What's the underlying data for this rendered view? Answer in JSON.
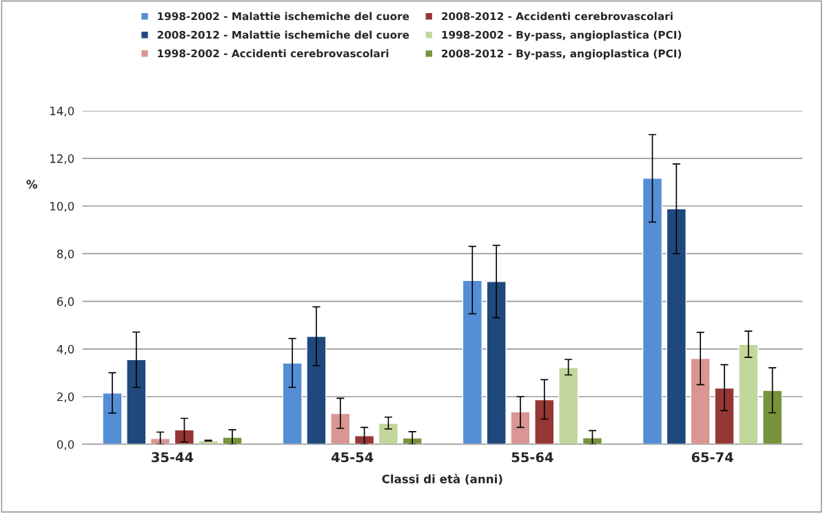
{
  "chart_data": {
    "type": "bar",
    "xlabel": "Classi di età (anni)",
    "ylabel": "%",
    "categories": [
      "35-44",
      "45-54",
      "55-64",
      "65-74"
    ],
    "series": [
      {
        "name": "1998-2002 - Malattie ischemiche del cuore",
        "color": "#558ed5",
        "values": [
          2.15,
          3.41,
          6.88,
          11.17
        ],
        "errors": [
          [
            1.31,
            3.0
          ],
          [
            2.39,
            4.44
          ],
          [
            5.48,
            8.31
          ],
          [
            9.33,
            13.0
          ]
        ]
      },
      {
        "name": "2008-2012 - Malattie ischemiche del cuore",
        "color": "#1f497d",
        "values": [
          3.55,
          4.53,
          6.83,
          9.88
        ],
        "errors": [
          [
            2.39,
            4.71
          ],
          [
            3.3,
            5.77
          ],
          [
            5.31,
            8.35
          ],
          [
            8.0,
            11.77
          ]
        ]
      },
      {
        "name": "1998-2002 - Accidenti cerebrovascolari",
        "color": "#d99694",
        "values": [
          0.24,
          1.29,
          1.36,
          3.6
        ],
        "errors": [
          [
            0.0,
            0.51
          ],
          [
            0.67,
            1.93
          ],
          [
            0.71,
            2.0
          ],
          [
            2.5,
            4.7
          ]
        ]
      },
      {
        "name": "2008-2012 - Accidenti cerebrovascolari",
        "color": "#953735",
        "values": [
          0.6,
          0.36,
          1.87,
          2.36
        ],
        "errors": [
          [
            0.1,
            1.09
          ],
          [
            0.0,
            0.71
          ],
          [
            1.06,
            2.71
          ],
          [
            1.41,
            3.34
          ]
        ]
      },
      {
        "name": "1998-2002 - By-pass, angioplastica (PCI)",
        "color": "#c3d69b",
        "values": [
          0.15,
          0.88,
          3.22,
          4.19
        ],
        "errors": [
          [
            0.14,
            0.17
          ],
          [
            0.64,
            1.14
          ],
          [
            2.91,
            3.56
          ],
          [
            3.65,
            4.75
          ]
        ]
      },
      {
        "name": "2008-2012 - By-pass, angioplastica (PCI)",
        "color": "#77933c",
        "values": [
          0.29,
          0.26,
          0.27,
          2.26
        ],
        "errors": [
          [
            0.0,
            0.61
          ],
          [
            0.0,
            0.53
          ],
          [
            0.0,
            0.57
          ],
          [
            1.32,
            3.21
          ]
        ]
      }
    ],
    "ylim": [
      0,
      14
    ],
    "yticks": [
      {
        "value": 0,
        "label": "0,0"
      },
      {
        "value": 2,
        "label": "2,0"
      },
      {
        "value": 4,
        "label": "4,0"
      },
      {
        "value": 6,
        "label": "6,0"
      },
      {
        "value": 8,
        "label": "8,0"
      },
      {
        "value": 10,
        "label": "10,0"
      },
      {
        "value": 12,
        "label": "12,0"
      },
      {
        "value": 14,
        "label": "14,0"
      }
    ],
    "grid": "y",
    "legend": "top"
  }
}
